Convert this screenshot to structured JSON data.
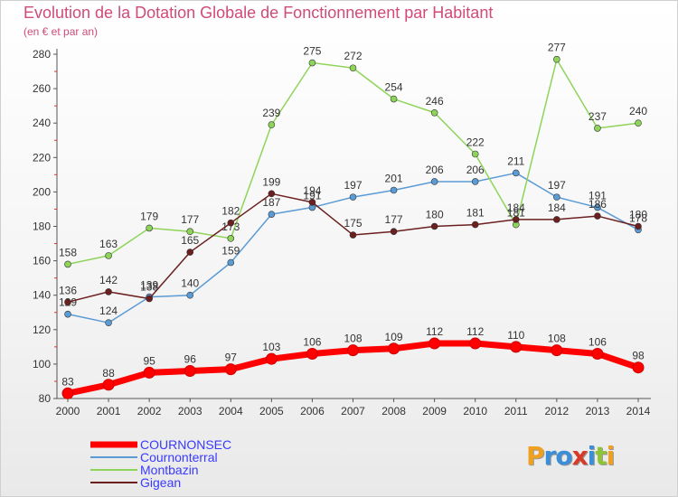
{
  "header": {
    "title": "Evolution de la Dotation Globale de Fonctionnement par Habitant",
    "subtitle": "(en € et par an)"
  },
  "logo": {
    "text": "Proxiti"
  },
  "chart_data": {
    "type": "line",
    "categories": [
      "2000",
      "2001",
      "2002",
      "2003",
      "2004",
      "2005",
      "2006",
      "2007",
      "2008",
      "2009",
      "2010",
      "2011",
      "2012",
      "2013",
      "2014"
    ],
    "ylim": [
      80,
      280
    ],
    "yticks": [
      80,
      100,
      120,
      140,
      160,
      180,
      200,
      220,
      240,
      260,
      280
    ],
    "grid": false,
    "legend": "bottom-left",
    "series": [
      {
        "name": "COURNONSEC",
        "color": "#ff0000",
        "labelColor": "#3a3aff",
        "emphasis": true,
        "values": [
          83,
          88,
          95,
          96,
          97,
          103,
          106,
          108,
          109,
          112,
          112,
          110,
          108,
          106,
          98
        ]
      },
      {
        "name": "Cournonterral",
        "color": "#5b9bd5",
        "labelColor": "#3a3aff",
        "values": [
          129,
          124,
          139,
          140,
          159,
          187,
          191,
          197,
          201,
          206,
          206,
          211,
          197,
          191,
          178
        ]
      },
      {
        "name": "Montbazin",
        "color": "#8fd45a",
        "labelColor": "#3a3aff",
        "values": [
          158,
          163,
          179,
          177,
          173,
          239,
          275,
          272,
          254,
          246,
          222,
          181,
          277,
          237,
          240
        ]
      },
      {
        "name": "Gigean",
        "color": "#6b1f1f",
        "labelColor": "#3a3aff",
        "values": [
          136,
          142,
          138,
          165,
          182,
          199,
          194,
          175,
          177,
          180,
          181,
          184,
          184,
          186,
          180
        ]
      }
    ]
  }
}
